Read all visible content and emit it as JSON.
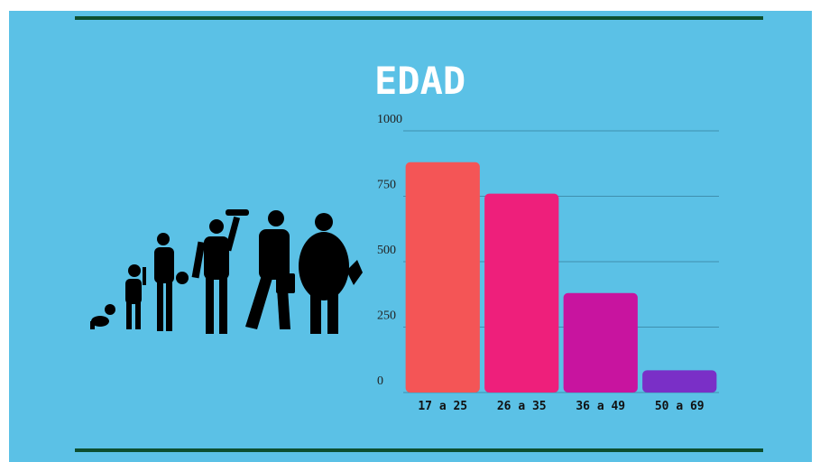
{
  "chart_data": {
    "type": "bar",
    "title": "EDAD",
    "categories": [
      "17 a 25",
      "26 a 35",
      "36 a 49",
      "50 a 69"
    ],
    "values": [
      880,
      760,
      380,
      85
    ],
    "colors": [
      "#f45556",
      "#ee1f7b",
      "#c8149f",
      "#7a2fc7"
    ],
    "ylim": [
      0,
      1000
    ],
    "yticks": [
      0,
      250,
      500,
      750,
      1000
    ],
    "grid": true
  }
}
